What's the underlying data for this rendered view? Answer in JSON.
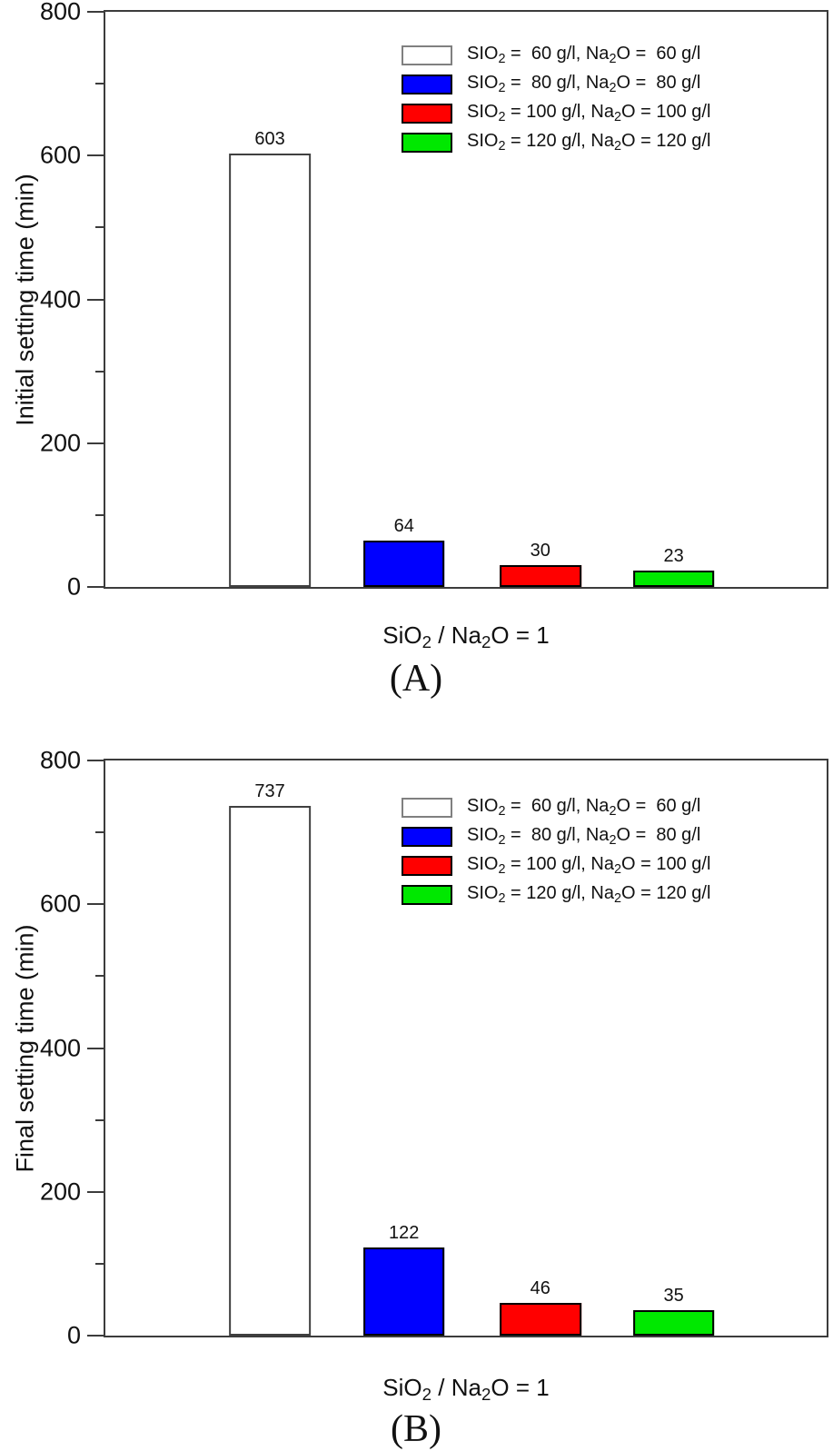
{
  "chart_data": [
    {
      "type": "bar",
      "panel_label": "(A)",
      "ylabel": "Initial setting time (min)",
      "xlabel_parts": [
        "SiO",
        "2",
        " / Na",
        "2",
        "O = 1"
      ],
      "ylim": [
        0,
        800
      ],
      "yticks_major": [
        0,
        200,
        400,
        600,
        800
      ],
      "yticks_minor": [
        100,
        300,
        500,
        700
      ],
      "grid": "off",
      "categories": [
        "SiO2 60 g/l, Na2O 60 g/l",
        "SiO2 80 g/l, Na2O 80 g/l",
        "SiO2 100 g/l, Na2O 100 g/l",
        "SiO2 120 g/l, Na2O 120 g/l"
      ],
      "series_names": [
        "60gpl",
        "80gpl",
        "100gpl",
        "120gpl"
      ],
      "values": [
        603,
        64,
        30,
        23
      ],
      "bar_colors": [
        "#ffffff",
        "#0000ff",
        "#ff0000",
        "#00e800"
      ],
      "bar_borders": [
        "#404040",
        "#000000",
        "#000000",
        "#000000"
      ],
      "bar_centers_pct": [
        22.8,
        41.4,
        60.3,
        78.8
      ],
      "bar_width_pct": 11.3,
      "legend": {
        "position": "upper-right-inside",
        "items": [
          {
            "swatch_color": "#ffffff",
            "swatch_border": "#808080",
            "label_parts": [
              "SIO",
              "2",
              " =  60 g/l, Na",
              "2",
              "O =  60 g/l"
            ]
          },
          {
            "swatch_color": "#0000ff",
            "swatch_border": "#000000",
            "label_parts": [
              "SIO",
              "2",
              " =  80 g/l, Na",
              "2",
              "O =  80 g/l"
            ]
          },
          {
            "swatch_color": "#ff0000",
            "swatch_border": "#000000",
            "label_parts": [
              "SIO",
              "2",
              " = 100 g/l, Na",
              "2",
              "O = 100 g/l"
            ]
          },
          {
            "swatch_color": "#00e800",
            "swatch_border": "#000000",
            "label_parts": [
              "SIO",
              "2",
              " = 120 g/l, Na",
              "2",
              "O = 120 g/l"
            ]
          }
        ]
      }
    },
    {
      "type": "bar",
      "panel_label": "(B)",
      "ylabel": "Final setting time (min)",
      "xlabel_parts": [
        "SiO",
        "2",
        " / Na",
        "2",
        "O = 1"
      ],
      "ylim": [
        0,
        800
      ],
      "yticks_major": [
        0,
        200,
        400,
        600,
        800
      ],
      "yticks_minor": [
        100,
        300,
        500,
        700
      ],
      "grid": "off",
      "categories": [
        "SiO2 60 g/l, Na2O 60 g/l",
        "SiO2 80 g/l, Na2O 80 g/l",
        "SiO2 100 g/l, Na2O 100 g/l",
        "SiO2 120 g/l, Na2O 120 g/l"
      ],
      "series_names": [
        "60gpl",
        "80gpl",
        "100gpl",
        "120gpl"
      ],
      "values": [
        737,
        122,
        46,
        35
      ],
      "bar_colors": [
        "#ffffff",
        "#0000ff",
        "#ff0000",
        "#00e800"
      ],
      "bar_borders": [
        "#404040",
        "#000000",
        "#000000",
        "#000000"
      ],
      "bar_centers_pct": [
        22.8,
        41.4,
        60.3,
        78.8
      ],
      "bar_width_pct": 11.3,
      "legend": {
        "position": "upper-right-inside",
        "items": [
          {
            "swatch_color": "#ffffff",
            "swatch_border": "#808080",
            "label_parts": [
              "SIO",
              "2",
              " =  60 g/l, Na",
              "2",
              "O =  60 g/l"
            ]
          },
          {
            "swatch_color": "#0000ff",
            "swatch_border": "#000000",
            "label_parts": [
              "SIO",
              "2",
              " =  80 g/l, Na",
              "2",
              "O =  80 g/l"
            ]
          },
          {
            "swatch_color": "#ff0000",
            "swatch_border": "#000000",
            "label_parts": [
              "SIO",
              "2",
              " = 100 g/l, Na",
              "2",
              "O = 100 g/l"
            ]
          },
          {
            "swatch_color": "#00e800",
            "swatch_border": "#000000",
            "label_parts": [
              "SIO",
              "2",
              " = 120 g/l, Na",
              "2",
              "O = 120 g/l"
            ]
          }
        ]
      }
    }
  ]
}
